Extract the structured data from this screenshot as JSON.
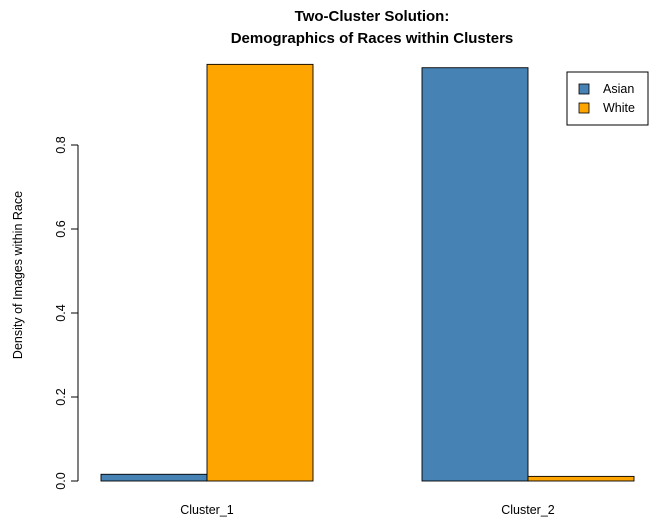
{
  "chart_data": {
    "type": "bar",
    "layout": "grouped",
    "title": "Two-Cluster Solution:",
    "subtitle": "Demographics of Races within Clusters",
    "xlabel": "",
    "ylabel": "Density of Images within Race",
    "categories": [
      "Cluster_1",
      "Cluster_2"
    ],
    "series": [
      {
        "name": "Asian",
        "values": [
          0.016,
          0.984
        ],
        "color": "#4682B4"
      },
      {
        "name": "White",
        "values": [
          0.992,
          0.011
        ],
        "color": "#FFA500"
      }
    ],
    "ylim": [
      0,
      0.992
    ],
    "y_ticks": [
      0.0,
      0.2,
      0.4,
      0.6,
      0.8
    ],
    "y_tick_labels": [
      "0.0",
      "0.2",
      "0.4",
      "0.6",
      "0.8"
    ],
    "grid": false,
    "legend": {
      "position": "top-right",
      "entries": [
        "Asian",
        "White"
      ]
    }
  }
}
